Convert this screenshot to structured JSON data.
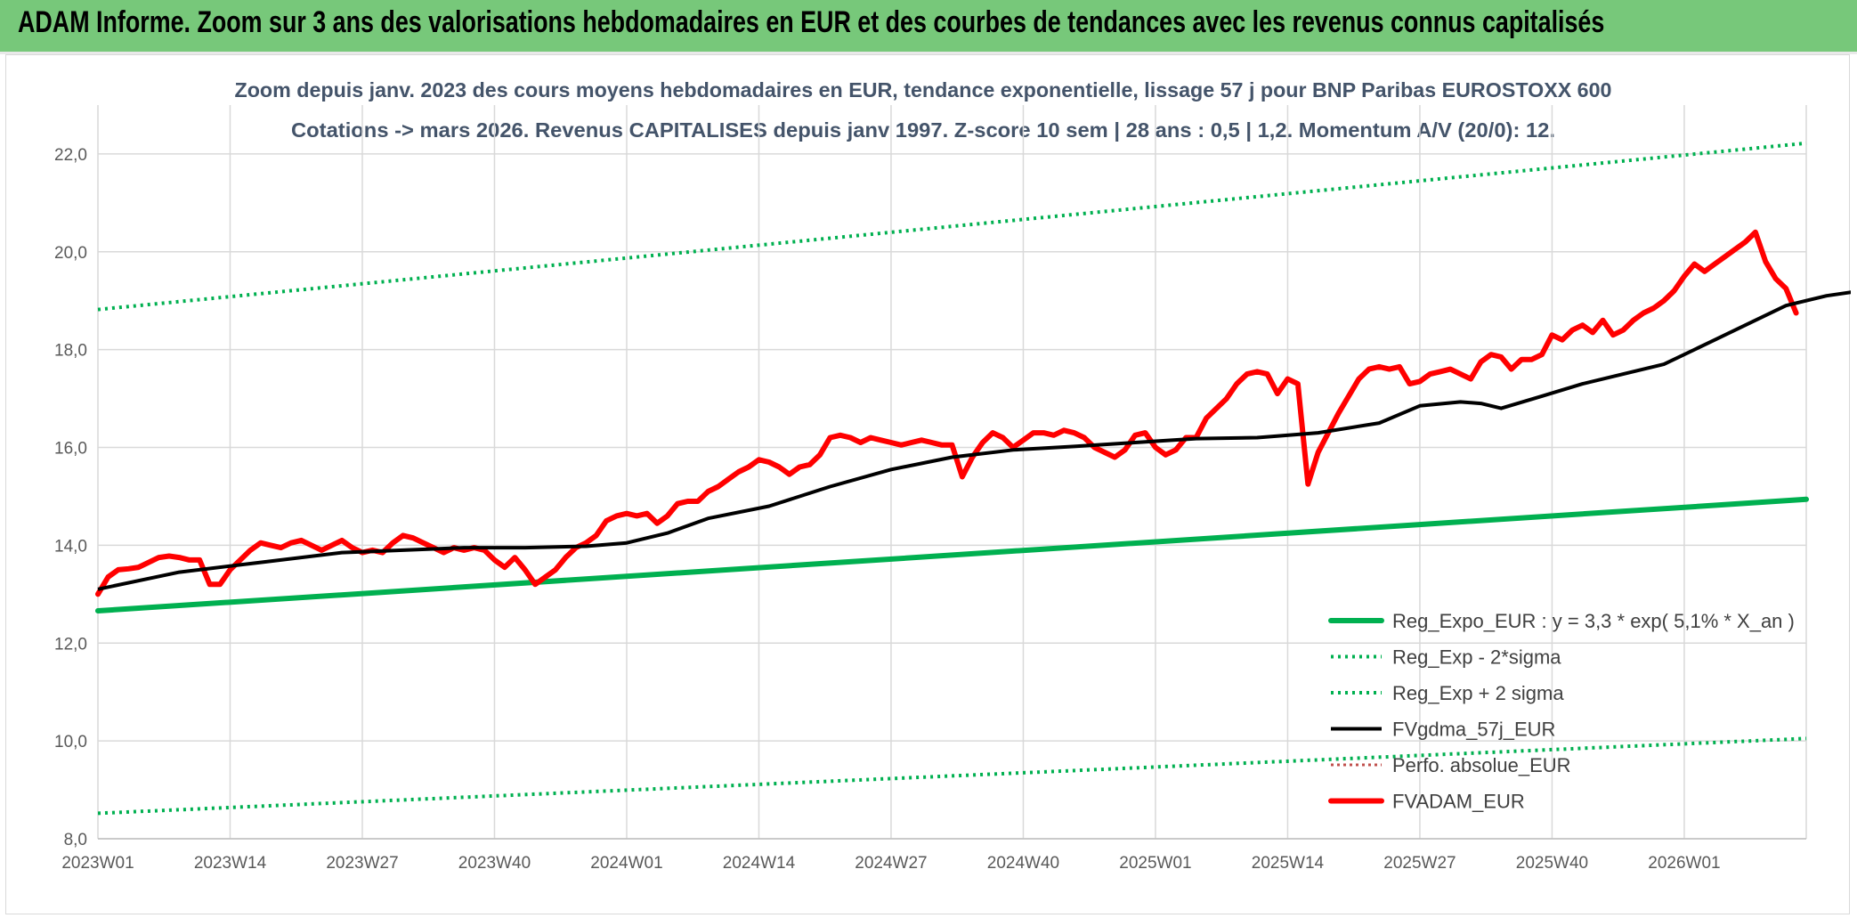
{
  "header": {
    "title": "ADAM Informe. Zoom sur 3 ans des valorisations hebdomadaires en EUR et des courbes de tendances avec les revenus connus capitalisés"
  },
  "chart_data": {
    "type": "line",
    "title": "Zoom depuis janv. 2023 des cours moyens hebdomadaires en EUR, tendance exponentielle, lissage 57 j pour BNP Paribas EUROSTOXX 600",
    "subtitle": "Cotations -> mars 2026. Revenus CAPITALISES depuis janv 1997. Z-score 10 sem | 28 ans : 0,5 | 1,2. Momentum A/V (20/0): 12.",
    "xlabel": "",
    "ylabel": "",
    "ylim": [
      8,
      23
    ],
    "yticks": [
      "8,0",
      "10,0",
      "12,0",
      "14,0",
      "16,0",
      "18,0",
      "20,0",
      "22,0"
    ],
    "xticks": [
      "2023W01",
      "2023W14",
      "2023W27",
      "2023W40",
      "2024W01",
      "2024W14",
      "2024W27",
      "2024W40",
      "2025W01",
      "2025W14",
      "2025W27",
      "2025W40",
      "2026W01"
    ],
    "x_period_count": 169,
    "grid": "vertical",
    "legend_position": "bottom-right",
    "series": [
      {
        "name": "Reg_Expo_EUR : y = 3,3 * exp( 5,1% *  X_an )",
        "color": "#00b050",
        "style": "solid-thick",
        "points": [
          [
            0,
            12.66
          ],
          [
            168,
            14.94
          ]
        ]
      },
      {
        "name": "Reg_Exp - 2*sigma",
        "color": "#00b050",
        "style": "dotted",
        "points": [
          [
            0,
            8.52
          ],
          [
            168,
            10.05
          ]
        ]
      },
      {
        "name": "Reg_Exp + 2 sigma",
        "color": "#00b050",
        "style": "dotted",
        "points": [
          [
            0,
            18.82
          ],
          [
            168,
            22.22
          ]
        ]
      },
      {
        "name": "FVgdma_57j_EUR",
        "color": "#000000",
        "style": "solid",
        "points": [
          [
            0,
            13.1
          ],
          [
            8,
            13.45
          ],
          [
            16,
            13.65
          ],
          [
            24,
            13.85
          ],
          [
            30,
            13.9
          ],
          [
            36,
            13.95
          ],
          [
            42,
            13.95
          ],
          [
            48,
            13.98
          ],
          [
            52,
            14.05
          ],
          [
            56,
            14.25
          ],
          [
            60,
            14.55
          ],
          [
            66,
            14.8
          ],
          [
            72,
            15.2
          ],
          [
            78,
            15.55
          ],
          [
            84,
            15.8
          ],
          [
            90,
            15.95
          ],
          [
            96,
            16.02
          ],
          [
            102,
            16.1
          ],
          [
            108,
            16.18
          ],
          [
            114,
            16.2
          ],
          [
            120,
            16.3
          ],
          [
            126,
            16.5
          ],
          [
            130,
            16.85
          ],
          [
            134,
            16.93
          ],
          [
            136,
            16.9
          ],
          [
            138,
            16.8
          ],
          [
            142,
            17.05
          ],
          [
            146,
            17.3
          ],
          [
            150,
            17.5
          ],
          [
            154,
            17.7
          ],
          [
            158,
            18.1
          ],
          [
            162,
            18.5
          ],
          [
            166,
            18.9
          ],
          [
            170,
            19.1
          ],
          [
            174,
            19.22
          ],
          [
            177,
            19.28
          ],
          [
            180,
            19.2
          ],
          [
            182,
            19.12
          ],
          [
            184,
            19.06
          ]
        ]
      },
      {
        "name": "Perfo. absolue_EUR",
        "color": "#c0504d",
        "style": "dotted-thin",
        "points": []
      },
      {
        "name": "FVADAM_EUR",
        "color": "#ff0000",
        "style": "solid-thick",
        "points": [
          [
            0,
            13.0
          ],
          [
            1,
            13.35
          ],
          [
            2,
            13.5
          ],
          [
            3,
            13.52
          ],
          [
            4,
            13.55
          ],
          [
            5,
            13.65
          ],
          [
            6,
            13.75
          ],
          [
            7,
            13.78
          ],
          [
            8,
            13.75
          ],
          [
            9,
            13.7
          ],
          [
            10,
            13.7
          ],
          [
            11,
            13.2
          ],
          [
            12,
            13.2
          ],
          [
            13,
            13.5
          ],
          [
            14,
            13.7
          ],
          [
            15,
            13.9
          ],
          [
            16,
            14.05
          ],
          [
            17,
            14.0
          ],
          [
            18,
            13.95
          ],
          [
            19,
            14.05
          ],
          [
            20,
            14.1
          ],
          [
            21,
            14.0
          ],
          [
            22,
            13.9
          ],
          [
            23,
            14.0
          ],
          [
            24,
            14.1
          ],
          [
            25,
            13.95
          ],
          [
            26,
            13.85
          ],
          [
            27,
            13.9
          ],
          [
            28,
            13.85
          ],
          [
            29,
            14.05
          ],
          [
            30,
            14.2
          ],
          [
            31,
            14.15
          ],
          [
            32,
            14.05
          ],
          [
            33,
            13.95
          ],
          [
            34,
            13.85
          ],
          [
            35,
            13.95
          ],
          [
            36,
            13.9
          ],
          [
            37,
            13.95
          ],
          [
            38,
            13.9
          ],
          [
            39,
            13.7
          ],
          [
            40,
            13.55
          ],
          [
            41,
            13.75
          ],
          [
            42,
            13.5
          ],
          [
            43,
            13.2
          ],
          [
            44,
            13.35
          ],
          [
            45,
            13.5
          ],
          [
            46,
            13.75
          ],
          [
            47,
            13.95
          ],
          [
            48,
            14.05
          ],
          [
            49,
            14.2
          ],
          [
            50,
            14.5
          ],
          [
            51,
            14.6
          ],
          [
            52,
            14.65
          ],
          [
            53,
            14.6
          ],
          [
            54,
            14.65
          ],
          [
            55,
            14.45
          ],
          [
            56,
            14.6
          ],
          [
            57,
            14.85
          ],
          [
            58,
            14.9
          ],
          [
            59,
            14.9
          ],
          [
            60,
            15.1
          ],
          [
            61,
            15.2
          ],
          [
            62,
            15.35
          ],
          [
            63,
            15.5
          ],
          [
            64,
            15.6
          ],
          [
            65,
            15.75
          ],
          [
            66,
            15.7
          ],
          [
            67,
            15.6
          ],
          [
            68,
            15.45
          ],
          [
            69,
            15.6
          ],
          [
            70,
            15.65
          ],
          [
            71,
            15.85
          ],
          [
            72,
            16.2
          ],
          [
            73,
            16.25
          ],
          [
            74,
            16.2
          ],
          [
            75,
            16.1
          ],
          [
            76,
            16.2
          ],
          [
            77,
            16.15
          ],
          [
            78,
            16.1
          ],
          [
            79,
            16.05
          ],
          [
            80,
            16.1
          ],
          [
            81,
            16.15
          ],
          [
            82,
            16.1
          ],
          [
            83,
            16.05
          ],
          [
            84,
            16.05
          ],
          [
            85,
            15.4
          ],
          [
            86,
            15.8
          ],
          [
            87,
            16.1
          ],
          [
            88,
            16.3
          ],
          [
            89,
            16.2
          ],
          [
            90,
            16.0
          ],
          [
            91,
            16.15
          ],
          [
            92,
            16.3
          ],
          [
            93,
            16.3
          ],
          [
            94,
            16.25
          ],
          [
            95,
            16.35
          ],
          [
            96,
            16.3
          ],
          [
            97,
            16.2
          ],
          [
            98,
            16.0
          ],
          [
            99,
            15.9
          ],
          [
            100,
            15.8
          ],
          [
            101,
            15.95
          ],
          [
            102,
            16.25
          ],
          [
            103,
            16.3
          ],
          [
            104,
            16.0
          ],
          [
            105,
            15.85
          ],
          [
            106,
            15.95
          ],
          [
            107,
            16.2
          ],
          [
            108,
            16.2
          ],
          [
            109,
            16.6
          ],
          [
            110,
            16.8
          ],
          [
            111,
            17.0
          ],
          [
            112,
            17.3
          ],
          [
            113,
            17.5
          ],
          [
            114,
            17.55
          ],
          [
            115,
            17.5
          ],
          [
            116,
            17.1
          ],
          [
            117,
            17.4
          ],
          [
            118,
            17.3
          ],
          [
            119,
            15.25
          ],
          [
            120,
            15.9
          ],
          [
            121,
            16.3
          ],
          [
            122,
            16.7
          ],
          [
            123,
            17.05
          ],
          [
            124,
            17.4
          ],
          [
            125,
            17.6
          ],
          [
            126,
            17.65
          ],
          [
            127,
            17.6
          ],
          [
            128,
            17.65
          ],
          [
            129,
            17.3
          ],
          [
            130,
            17.35
          ],
          [
            131,
            17.5
          ],
          [
            132,
            17.55
          ],
          [
            133,
            17.6
          ],
          [
            134,
            17.5
          ],
          [
            135,
            17.4
          ],
          [
            136,
            17.75
          ],
          [
            137,
            17.9
          ],
          [
            138,
            17.85
          ],
          [
            139,
            17.6
          ],
          [
            140,
            17.8
          ],
          [
            141,
            17.8
          ],
          [
            142,
            17.9
          ],
          [
            143,
            18.3
          ],
          [
            144,
            18.2
          ],
          [
            145,
            18.4
          ],
          [
            146,
            18.5
          ],
          [
            147,
            18.35
          ],
          [
            148,
            18.6
          ],
          [
            149,
            18.3
          ],
          [
            150,
            18.4
          ],
          [
            151,
            18.6
          ],
          [
            152,
            18.75
          ],
          [
            153,
            18.85
          ],
          [
            154,
            19.0
          ],
          [
            155,
            19.2
          ],
          [
            156,
            19.5
          ],
          [
            157,
            19.75
          ],
          [
            158,
            19.6
          ],
          [
            159,
            19.75
          ],
          [
            160,
            19.9
          ],
          [
            161,
            20.05
          ],
          [
            162,
            20.2
          ],
          [
            163,
            20.4
          ],
          [
            164,
            19.8
          ],
          [
            165,
            19.45
          ],
          [
            166,
            19.25
          ],
          [
            167,
            18.75
          ]
        ]
      }
    ]
  }
}
